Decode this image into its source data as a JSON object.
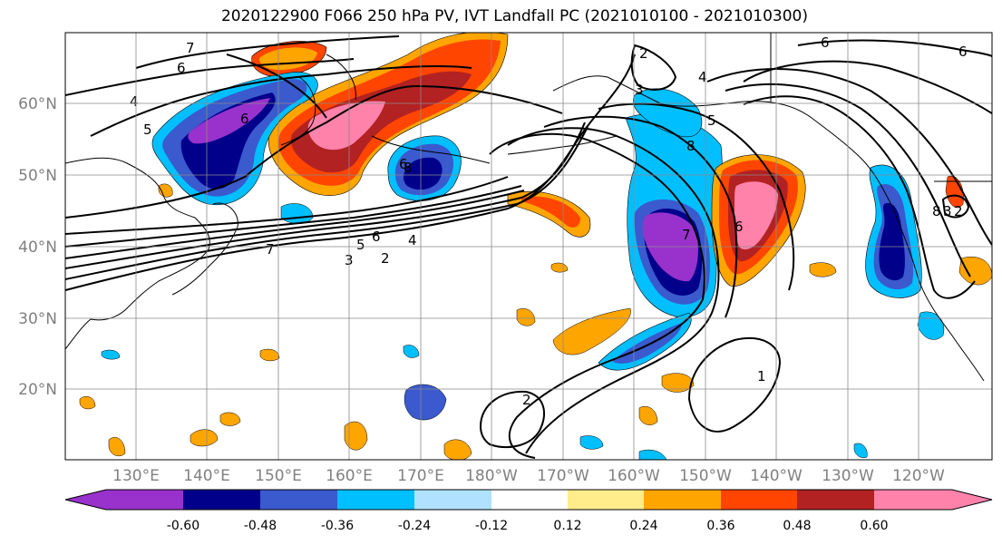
{
  "title": "2020122900 F066 250 hPa PV, IVT Landfall PC (2021010100 - 2021010300)",
  "latitude_labels": [
    "60°N",
    "50°N",
    "40°N",
    "30°N",
    "20°N"
  ],
  "longitude_labels": [
    "130°E",
    "140°E",
    "150°E",
    "160°E",
    "170°E",
    "180°W",
    "170°W",
    "160°W",
    "150°W",
    "140°W",
    "130°W",
    "120°W"
  ],
  "colorbar": {
    "colors": [
      "#9932cc",
      "#00008b",
      "#3a5acd",
      "#00bfff",
      "#b0e2ff",
      "#ffffff",
      "#ffec8b",
      "#ffa500",
      "#ff4500",
      "#b22222",
      "#ff82ab"
    ],
    "tick_labels": [
      "-0.60",
      "-0.48",
      "-0.36",
      "-0.24",
      "-0.12",
      "0.12",
      "0.24",
      "0.36",
      "0.48",
      "0.60"
    ]
  },
  "contour_labels": [
    "7",
    "6",
    "4",
    "5",
    "6",
    "6",
    "8",
    "7",
    "5",
    "6",
    "4",
    "3",
    "2",
    "2",
    "3",
    "4",
    "5",
    "8",
    "7",
    "6",
    "2",
    "1",
    "6",
    "6",
    "8",
    "3",
    "2"
  ]
}
